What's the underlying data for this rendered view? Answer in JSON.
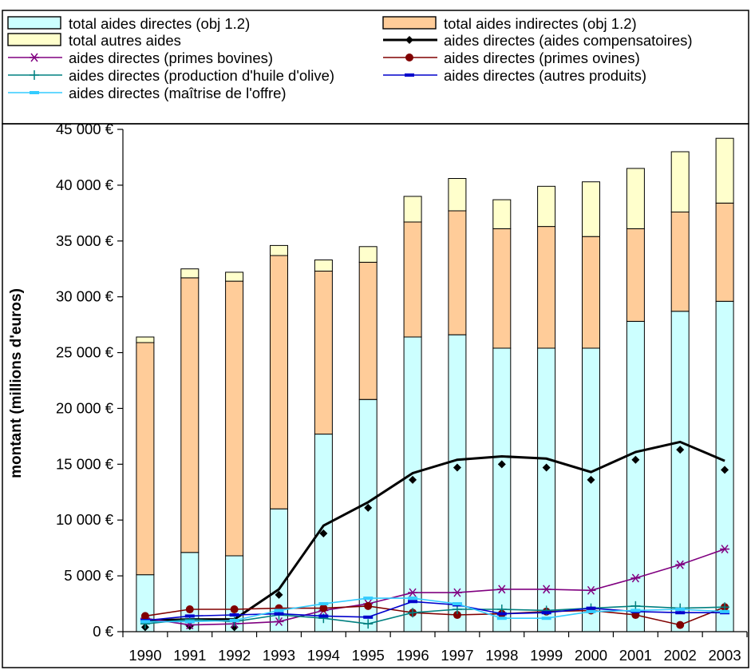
{
  "chart_data": {
    "type": "bar",
    "stacked": true,
    "categories": [
      "1990",
      "1991",
      "1992",
      "1993",
      "1994",
      "1995",
      "1996",
      "1997",
      "1998",
      "1999",
      "2000",
      "2001",
      "2002",
      "2003"
    ],
    "title": "",
    "xlabel": "",
    "ylabel": "montant (millions d'euros)",
    "ylim": [
      0,
      45000
    ],
    "y_ticks": [
      0,
      5000,
      10000,
      15000,
      20000,
      25000,
      30000,
      35000,
      40000,
      45000
    ],
    "y_tick_labels": [
      "0 €",
      "5 000 €",
      "10 000 €",
      "15 000 €",
      "20 000 €",
      "25 000 €",
      "30 000 €",
      "35 000 €",
      "40 000 €",
      "45 000 €"
    ],
    "grid": false,
    "legend_position": "top",
    "bar_series": [
      {
        "name": "total aides directes (obj 1.2)",
        "color": "#ccffff",
        "values": [
          5100,
          7100,
          6800,
          11000,
          17700,
          20800,
          26400,
          26600,
          25400,
          25400,
          25400,
          27800,
          28700,
          29600
        ]
      },
      {
        "name": "total aides indirectes (obj 1.2)",
        "color": "#ffcc99",
        "values": [
          20800,
          24600,
          24600,
          22700,
          14600,
          12300,
          10300,
          11100,
          10700,
          10900,
          10000,
          8300,
          8900,
          8800
        ]
      },
      {
        "name": "total autres aides",
        "color": "#ffffcc",
        "values": [
          500,
          800,
          800,
          900,
          1000,
          1400,
          2300,
          2900,
          2600,
          3600,
          4900,
          5400,
          5400,
          5800
        ]
      }
    ],
    "line_series": [
      {
        "name": "aides directes (aides compensatoires)",
        "color": "#000000",
        "marker": "diamond",
        "line_values": [
          1000,
          1100,
          1100,
          3800,
          9500,
          11600,
          14200,
          15400,
          15700,
          15500,
          14300,
          16100,
          17000,
          15300
        ],
        "marker_values": [
          400,
          500,
          400,
          3300,
          8800,
          11100,
          13600,
          14700,
          15000,
          14700,
          13600,
          15400,
          16300,
          14500
        ]
      },
      {
        "name": "aides directes (primes bovines)",
        "color": "#800080",
        "marker": "star",
        "values": [
          1200,
          600,
          700,
          900,
          1900,
          2500,
          3500,
          3500,
          3800,
          3800,
          3700,
          4800,
          6000,
          7400
        ]
      },
      {
        "name": "aides directes (primes ovines)",
        "color": "#800000",
        "marker": "circle",
        "values": [
          1400,
          2000,
          2000,
          2100,
          2100,
          2300,
          1700,
          1500,
          1600,
          1800,
          1900,
          1500,
          600,
          2200
        ]
      },
      {
        "name": "aides directes (production d'huile d'olive)",
        "color": "#008080",
        "marker": "plus",
        "values": [
          700,
          1100,
          900,
          1500,
          1200,
          700,
          1700,
          2000,
          2000,
          1900,
          2100,
          2300,
          2100,
          2200
        ]
      },
      {
        "name": "aides directes (autres produits)",
        "color": "#0000cc",
        "marker": "dash",
        "values": [
          1000,
          1400,
          1500,
          1600,
          1400,
          1300,
          2700,
          2400,
          1600,
          1700,
          2100,
          1800,
          1700,
          1700
        ]
      },
      {
        "name": "aides directes (maîtrise de l'offre)",
        "color": "#33ccff",
        "marker": "dash",
        "values": [
          900,
          900,
          1000,
          1900,
          2500,
          3000,
          3000,
          2500,
          1200,
          1200,
          1800,
          1900,
          2000,
          1800
        ]
      }
    ]
  }
}
